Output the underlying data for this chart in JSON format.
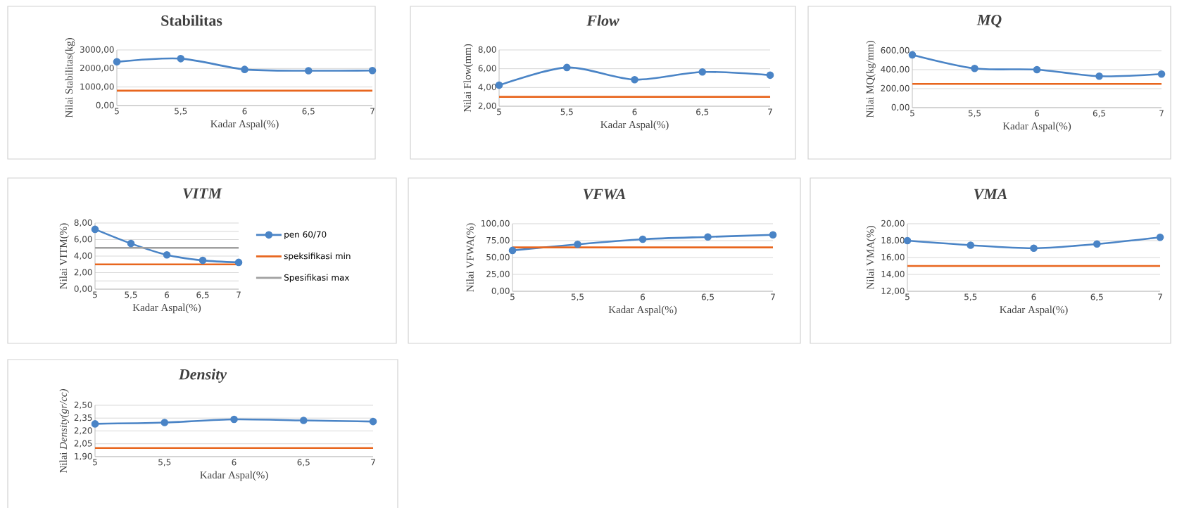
{
  "chart_data": [
    {
      "type": "line",
      "title": "Stabilitas",
      "xlabel": "Kadar Aspal(%)",
      "ylabel": "Nilai Stabilitas(kg)",
      "categories": [
        "5",
        "5,5",
        "6",
        "6,5",
        "7"
      ],
      "series": [
        {
          "color": "#4a84c6",
          "values": [
            2360,
            2530,
            1950,
            1880,
            1890
          ]
        }
      ],
      "ylim": [
        0,
        3000
      ],
      "yticks": [
        {
          "value": 0,
          "label": "0,00"
        },
        {
          "value": 1000,
          "label": "1000,00"
        },
        {
          "value": 2000,
          "label": "2000,00"
        },
        {
          "value": 3000,
          "label": "3000,00"
        }
      ],
      "ref_lines": [
        {
          "axis": "y",
          "value": 800,
          "color": "#e8661e"
        }
      ],
      "grid": "y",
      "marker": "circle"
    },
    {
      "type": "line",
      "title": "Flow",
      "xlabel": "Kadar Aspal(%)",
      "ylabel": "Nilai Flow(mm)",
      "categories": [
        "5",
        "5,5",
        "6",
        "6,5",
        "7"
      ],
      "series": [
        {
          "color": "#4a84c6",
          "values": [
            4.24,
            6.13,
            4.83,
            5.65,
            5.31
          ]
        }
      ],
      "ylim": [
        2,
        8
      ],
      "yticks": [
        {
          "value": 2,
          "label": "2,00"
        },
        {
          "value": 4,
          "label": "4,00"
        },
        {
          "value": 6,
          "label": "6,00"
        },
        {
          "value": 8,
          "label": "8,00"
        }
      ],
      "ref_lines": [
        {
          "axis": "y",
          "value": 3,
          "color": "#e8661e"
        }
      ],
      "grid": "y",
      "marker": "circle"
    },
    {
      "type": "line",
      "title": "MQ",
      "xlabel": "Kadar Aspal(%)",
      "ylabel": "Nilai MQ(kg/mm)",
      "categories": [
        "5",
        "5,5",
        "6",
        "6,5",
        "7"
      ],
      "series": [
        {
          "color": "#4a84c6",
          "values": [
            556,
            413,
            400,
            331,
            354
          ]
        }
      ],
      "ylim": [
        0,
        600
      ],
      "yticks": [
        {
          "value": 0,
          "label": "0,00"
        },
        {
          "value": 200,
          "label": "200,00"
        },
        {
          "value": 400,
          "label": "400,00"
        },
        {
          "value": 600,
          "label": "600,00"
        }
      ],
      "ref_lines": [
        {
          "axis": "y",
          "value": 250,
          "color": "#e8661e"
        }
      ],
      "grid": "y",
      "marker": "circle"
    },
    {
      "type": "line",
      "title": "VITM",
      "xlabel": "Kadar Aspal(%)",
      "ylabel": "Nilai VITM(%)",
      "categories": [
        "5",
        "5,5",
        "6",
        "6,5",
        "7"
      ],
      "series": [
        {
          "name": "pen 60/70",
          "color": "#4a84c6",
          "values": [
            7.24,
            5.52,
            4.15,
            3.48,
            3.24
          ]
        }
      ],
      "ylim": [
        0,
        8
      ],
      "yticks": [
        {
          "value": 0,
          "label": "0,00"
        },
        {
          "value": 1,
          "label": null
        },
        {
          "value": 2,
          "label": "2,00"
        },
        {
          "value": 3,
          "label": null
        },
        {
          "value": 4,
          "label": "4,00"
        },
        {
          "value": 5,
          "label": null
        },
        {
          "value": 6,
          "label": "6,00"
        },
        {
          "value": 7,
          "label": null
        },
        {
          "value": 8,
          "label": "8,00"
        }
      ],
      "ref_lines": [
        {
          "axis": "y",
          "value": 3,
          "color": "#e8661e",
          "label": "speksifikasi min"
        },
        {
          "axis": "y",
          "value": 5,
          "color": "#a0a0a0",
          "label": "Spesifikasi max"
        }
      ],
      "grid": "y",
      "marker": "circle",
      "legend": "right"
    },
    {
      "type": "line",
      "title": "VFWA",
      "xlabel": "Kadar Aspal(%)",
      "ylabel": "Nilai VFWA(%)",
      "categories": [
        "5",
        "5,5",
        "6",
        "6,5",
        "7"
      ],
      "series": [
        {
          "color": "#4a84c6",
          "values": [
            60.5,
            69.5,
            77,
            80.5,
            83.5
          ]
        }
      ],
      "ylim": [
        0,
        100
      ],
      "yticks": [
        {
          "value": 0,
          "label": "0,00"
        },
        {
          "value": 25,
          "label": "25,00"
        },
        {
          "value": 50,
          "label": "50,00"
        },
        {
          "value": 75,
          "label": "75,00"
        },
        {
          "value": 100,
          "label": "100,00"
        }
      ],
      "ref_lines": [
        {
          "axis": "y",
          "value": 65,
          "color": "#e8661e"
        }
      ],
      "grid": "y",
      "marker": "circle"
    },
    {
      "type": "line",
      "title": "VMA",
      "xlabel": "Kadar Aspal(%)",
      "ylabel": "Nilai VMA(%)",
      "categories": [
        "5",
        "5,5",
        "6",
        "6,5",
        "7"
      ],
      "series": [
        {
          "color": "#4a84c6",
          "values": [
            18.0,
            17.46,
            17.1,
            17.6,
            18.4
          ]
        }
      ],
      "ylim": [
        12,
        20
      ],
      "yticks": [
        {
          "value": 12,
          "label": "12,00"
        },
        {
          "value": 14,
          "label": "14,00"
        },
        {
          "value": 16,
          "label": "16,00"
        },
        {
          "value": 18,
          "label": "18,00"
        },
        {
          "value": 20,
          "label": "20,00"
        }
      ],
      "ref_lines": [
        {
          "axis": "y",
          "value": 15,
          "color": "#e8661e"
        }
      ],
      "grid": "y",
      "marker": "circle"
    },
    {
      "type": "line",
      "title": "Density",
      "xlabel": "Kadar Aspal(%)",
      "ylabel": "Nilai *Density(gr/cc)*",
      "categories": [
        "5",
        "5,5",
        "6",
        "6,5",
        "7"
      ],
      "series": [
        {
          "color": "#4a84c6",
          "values": [
            2.283,
            2.298,
            2.335,
            2.323,
            2.31
          ]
        }
      ],
      "ylim": [
        1.9,
        2.5
      ],
      "yticks": [
        {
          "value": 1.9,
          "label": "1,90"
        },
        {
          "value": 2.05,
          "label": "2,05"
        },
        {
          "value": 2.2,
          "label": "2,20"
        },
        {
          "value": 2.35,
          "label": "2,35"
        },
        {
          "value": 2.5,
          "label": "2,50"
        }
      ],
      "ref_lines": [
        {
          "axis": "y",
          "value": 2.0,
          "color": "#e8661e"
        }
      ],
      "grid": "y",
      "marker": "circle"
    }
  ]
}
